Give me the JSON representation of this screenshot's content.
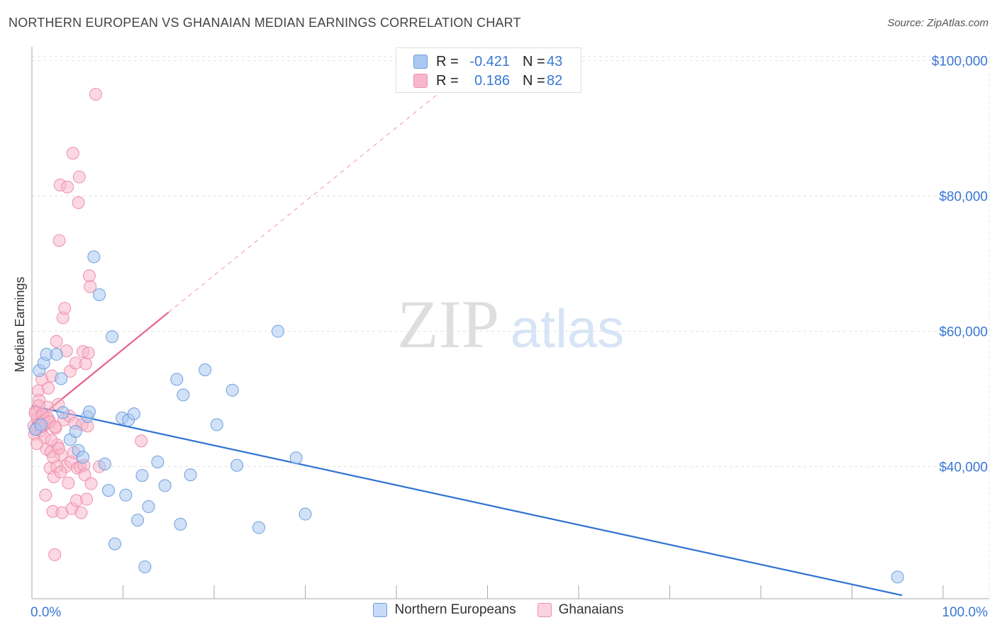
{
  "title": "NORTHERN EUROPEAN VS GHANAIAN MEDIAN EARNINGS CORRELATION CHART",
  "source": "Source: ZipAtlas.com",
  "watermark": {
    "zip": "ZIP",
    "atlas": "atlas"
  },
  "legend": {
    "rows": [
      {
        "r_label": "R =",
        "r_value": "-0.421",
        "n_label": "N =",
        "n_value": "43",
        "color": "#a9c8f2"
      },
      {
        "r_label": "R =",
        "r_value": "0.186",
        "n_label": "N =",
        "n_value": "82",
        "color": "#f7b8cb"
      }
    ]
  },
  "bottom_legend": [
    {
      "label": "Northern Europeans",
      "color": "#a9c8f2"
    },
    {
      "label": "Ghanaians",
      "color": "#f7b8cb"
    }
  ],
  "chart_data": {
    "type": "scatter",
    "title": "NORTHERN EUROPEAN VS GHANAIAN MEDIAN EARNINGS CORRELATION CHART",
    "xlabel": "",
    "ylabel": "Median Earnings",
    "xlim": [
      0,
      100
    ],
    "ylim": [
      20500,
      101500
    ],
    "x_tick_labels": [
      "0.0%",
      "100.0%"
    ],
    "y_ticks": [
      {
        "value": 40000,
        "label": "$40,000"
      },
      {
        "value": 60000,
        "label": "$60,000"
      },
      {
        "value": 80000,
        "label": "$80,000"
      },
      {
        "value": 100000,
        "label": "$100,000"
      }
    ],
    "colors": {
      "northern_fill": "#a9c8f2",
      "northern_stroke": "#6f9fdd",
      "northern_line": "#2f72d1",
      "ghana_fill": "#f7b8cb",
      "ghana_stroke": "#ee8fae",
      "ghana_line": "#e8608a",
      "tick_label": "#3a78d4"
    },
    "series": [
      {
        "name": "Northern Europeans",
        "r": -0.421,
        "n": 43,
        "trend": {
          "x1": 0,
          "y1": 49000,
          "x2": 95.5,
          "y2": 21000
        },
        "points": [
          [
            0.8,
            54200
          ],
          [
            1.3,
            55300
          ],
          [
            1.6,
            56600
          ],
          [
            2.7,
            56600
          ],
          [
            3.2,
            53000
          ],
          [
            3.4,
            48000
          ],
          [
            4.2,
            44000
          ],
          [
            4.8,
            45200
          ],
          [
            5.1,
            42400
          ],
          [
            5.6,
            41400
          ],
          [
            6.1,
            47400
          ],
          [
            6.3,
            48100
          ],
          [
            6.8,
            71000
          ],
          [
            7.4,
            65400
          ],
          [
            8.0,
            40400
          ],
          [
            8.4,
            36500
          ],
          [
            8.8,
            59200
          ],
          [
            9.1,
            28600
          ],
          [
            9.9,
            47200
          ],
          [
            10.3,
            35800
          ],
          [
            10.6,
            46900
          ],
          [
            11.2,
            47800
          ],
          [
            11.6,
            32100
          ],
          [
            12.1,
            38700
          ],
          [
            12.4,
            25200
          ],
          [
            12.8,
            34100
          ],
          [
            13.8,
            40700
          ],
          [
            14.6,
            37200
          ],
          [
            15.9,
            52900
          ],
          [
            16.3,
            31500
          ],
          [
            16.6,
            50600
          ],
          [
            17.4,
            38800
          ],
          [
            19.0,
            54300
          ],
          [
            20.3,
            46200
          ],
          [
            22.0,
            51300
          ],
          [
            22.5,
            40200
          ],
          [
            24.9,
            31000
          ],
          [
            27.0,
            60000
          ],
          [
            29.0,
            41300
          ],
          [
            30.0,
            33000
          ],
          [
            95.0,
            23700
          ],
          [
            0.4,
            45500
          ],
          [
            1.0,
            46200
          ]
        ]
      },
      {
        "name": "Ghanaians",
        "r": 0.186,
        "n": 82,
        "trend": {
          "x1": 0,
          "y1": 46400,
          "x2": 15.0,
          "y2": 62800
        },
        "trend_dashed": {
          "x1": 15.0,
          "y1": 62800,
          "x2": 44.5,
          "y2": 95000
        },
        "points": [
          [
            0.2,
            46000
          ],
          [
            0.3,
            44800
          ],
          [
            0.4,
            48200
          ],
          [
            0.5,
            45500
          ],
          [
            0.6,
            47100
          ],
          [
            0.7,
            51200
          ],
          [
            0.8,
            49800
          ],
          [
            0.9,
            46500
          ],
          [
            1.0,
            45300
          ],
          [
            1.1,
            52900
          ],
          [
            1.2,
            47600
          ],
          [
            1.3,
            46100
          ],
          [
            1.4,
            44300
          ],
          [
            1.5,
            35800
          ],
          [
            1.6,
            42600
          ],
          [
            1.7,
            48800
          ],
          [
            1.8,
            51600
          ],
          [
            1.9,
            46800
          ],
          [
            2.0,
            39800
          ],
          [
            2.1,
            42200
          ],
          [
            2.2,
            53400
          ],
          [
            2.3,
            33400
          ],
          [
            2.4,
            38500
          ],
          [
            2.5,
            27000
          ],
          [
            2.6,
            45700
          ],
          [
            2.7,
            58500
          ],
          [
            2.8,
            43200
          ],
          [
            2.9,
            49200
          ],
          [
            3.0,
            73400
          ],
          [
            3.1,
            81600
          ],
          [
            3.2,
            41800
          ],
          [
            3.3,
            33200
          ],
          [
            3.4,
            62000
          ],
          [
            3.5,
            46900
          ],
          [
            3.6,
            63400
          ],
          [
            3.7,
            40000
          ],
          [
            3.8,
            57100
          ],
          [
            3.9,
            81300
          ],
          [
            4.0,
            37600
          ],
          [
            4.1,
            47500
          ],
          [
            4.2,
            54100
          ],
          [
            4.3,
            40700
          ],
          [
            4.4,
            33800
          ],
          [
            4.5,
            86300
          ],
          [
            4.6,
            42100
          ],
          [
            4.7,
            46400
          ],
          [
            4.8,
            55300
          ],
          [
            4.9,
            35000
          ],
          [
            5.0,
            39800
          ],
          [
            5.1,
            79000
          ],
          [
            5.2,
            82800
          ],
          [
            5.3,
            40000
          ],
          [
            5.4,
            33200
          ],
          [
            5.5,
            46200
          ],
          [
            5.6,
            57000
          ],
          [
            5.7,
            40200
          ],
          [
            5.8,
            38800
          ],
          [
            5.9,
            55200
          ],
          [
            6.0,
            35200
          ],
          [
            6.1,
            46000
          ],
          [
            6.2,
            56800
          ],
          [
            6.3,
            68200
          ],
          [
            6.4,
            66600
          ],
          [
            6.5,
            37500
          ],
          [
            7.0,
            95000
          ],
          [
            7.4,
            40000
          ],
          [
            12.0,
            43800
          ],
          [
            0.35,
            47900
          ],
          [
            0.55,
            43400
          ],
          [
            0.75,
            49000
          ],
          [
            0.95,
            45900
          ],
          [
            1.15,
            47700
          ],
          [
            1.35,
            46700
          ],
          [
            1.55,
            46400
          ],
          [
            1.75,
            47200
          ],
          [
            1.95,
            46600
          ],
          [
            2.15,
            43900
          ],
          [
            2.35,
            41400
          ],
          [
            2.55,
            45900
          ],
          [
            2.75,
            40000
          ],
          [
            2.95,
            42700
          ],
          [
            3.15,
            39200
          ]
        ]
      }
    ]
  }
}
